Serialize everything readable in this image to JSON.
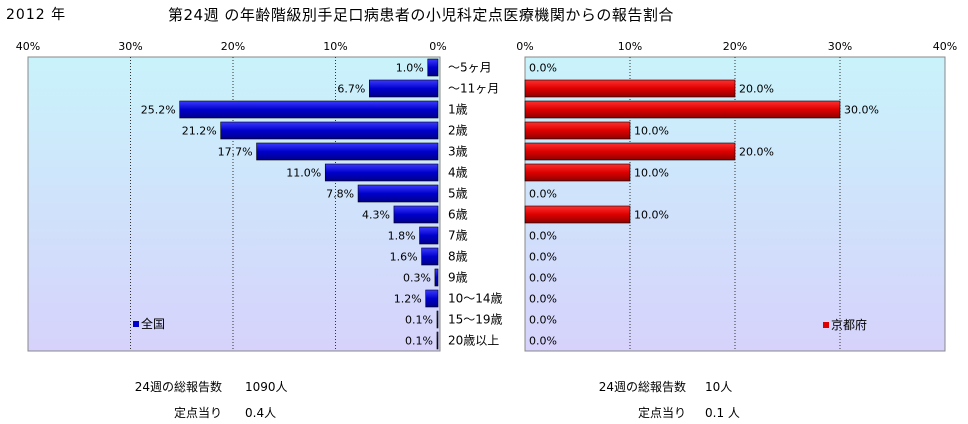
{
  "header": {
    "year": "2012 年",
    "title": "第24週 の年齢階級別手足口病患者の小児科定点医療機関からの報告割合"
  },
  "chart_data": {
    "type": "bar",
    "categories": [
      "～5ヶ月",
      "～11ヶ月",
      "1歳",
      "2歳",
      "3歳",
      "4歳",
      "5歳",
      "6歳",
      "7歳",
      "8歳",
      "9歳",
      "10～14歳",
      "15～19歳",
      "20歳以上"
    ],
    "xlim": [
      0,
      40
    ],
    "xticks": [
      "40%",
      "30%",
      "20%",
      "10%",
      "0%"
    ],
    "xticks_right": [
      "0%",
      "10%",
      "20%",
      "30%",
      "40%"
    ],
    "series": [
      {
        "name": "全国",
        "values": [
          1.0,
          6.7,
          25.2,
          21.2,
          17.7,
          11.0,
          7.8,
          4.3,
          1.8,
          1.6,
          0.3,
          1.2,
          0.1,
          0.1
        ],
        "labels": [
          "1.0%",
          "6.7%",
          "25.2%",
          "21.2%",
          "17.7%",
          "11.0%",
          "7.8%",
          "4.3%",
          "1.8%",
          "1.6%",
          "0.3%",
          "1.2%",
          "0.1%",
          "0.1%"
        ],
        "color": "#0000cc"
      },
      {
        "name": "京都府",
        "values": [
          0,
          20,
          30,
          10,
          20,
          10,
          0,
          10,
          0,
          0,
          0,
          0,
          0,
          0
        ],
        "labels": [
          "0.0%",
          "20.0%",
          "30.0%",
          "10.0%",
          "20.0%",
          "10.0%",
          "0.0%",
          "10.0%",
          "0.0%",
          "0.0%",
          "0.0%",
          "0.0%",
          "0.0%",
          "0.0%"
        ],
        "color": "#dd0000"
      }
    ]
  },
  "footer": {
    "national": {
      "total_label": "24週の総報告数",
      "total_value": "1090人",
      "per_label": "定点当り",
      "per_value": "0.4人"
    },
    "kyoto": {
      "total_label": "24週の総報告数",
      "total_value": "10人",
      "per_label": "定点当り",
      "per_value": "0.1 人"
    }
  },
  "colors": {
    "plot_bg_top": "#c9f3fb",
    "plot_bg_bottom": "#d6d2fb",
    "national": "#0000cc",
    "kyoto": "#dd0000"
  }
}
